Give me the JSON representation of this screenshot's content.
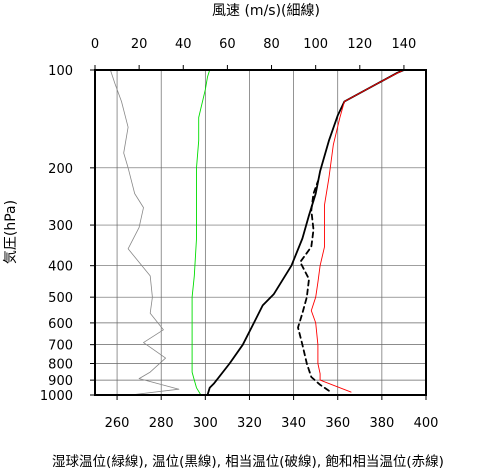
{
  "chart_data": {
    "type": "line",
    "title": "",
    "top_axis_title": "風速 (m/s)(細線)",
    "y_axis_title": "気圧(hPa)",
    "caption": "湿球温位(緑線), 温位(黒線), 相当温位(破線), 飽和相当温位(赤線)",
    "temp_axis": {
      "range": [
        250,
        400
      ],
      "ticks": [
        260,
        280,
        300,
        320,
        340,
        360,
        380,
        400
      ]
    },
    "wind_axis": {
      "range": [
        0,
        150
      ],
      "ticks": [
        0,
        20,
        40,
        60,
        80,
        100,
        120,
        140
      ]
    },
    "pressure_axis": {
      "range": [
        1000,
        100
      ],
      "scale": "log",
      "ticks": [
        1000,
        900,
        800,
        700,
        600,
        500,
        400,
        300,
        200,
        100
      ]
    },
    "grid": true,
    "series": [
      {
        "key": "wind",
        "label": "風速",
        "axis": "wind",
        "color": "#888888",
        "width": 0.8,
        "dash": "",
        "points": [
          [
            16,
            1000
          ],
          [
            38,
            960
          ],
          [
            20,
            890
          ],
          [
            25,
            850
          ],
          [
            32,
            770
          ],
          [
            22,
            690
          ],
          [
            31,
            630
          ],
          [
            25,
            560
          ],
          [
            26,
            500
          ],
          [
            25,
            430
          ],
          [
            15,
            355
          ],
          [
            20,
            305
          ],
          [
            22,
            265
          ],
          [
            18,
            240
          ],
          [
            15,
            200
          ],
          [
            13,
            180
          ],
          [
            15,
            150
          ],
          [
            12,
            125
          ],
          [
            9,
            110
          ],
          [
            7,
            100
          ]
        ]
      },
      {
        "key": "wet_bulb",
        "label": "湿球温位",
        "axis": "temp",
        "color": "#00dd00",
        "width": 0.9,
        "dash": "",
        "points": [
          [
            298,
            1000
          ],
          [
            296,
            950
          ],
          [
            295,
            900
          ],
          [
            294,
            850
          ],
          [
            294,
            780
          ],
          [
            294,
            700
          ],
          [
            294,
            600
          ],
          [
            294,
            500
          ],
          [
            295,
            430
          ],
          [
            296,
            330
          ],
          [
            296,
            260
          ],
          [
            296,
            200
          ],
          [
            297,
            165
          ],
          [
            297,
            140
          ],
          [
            300,
            115
          ],
          [
            301,
            105
          ],
          [
            302,
            100
          ]
        ]
      },
      {
        "key": "theta",
        "label": "温位",
        "axis": "temp",
        "color": "#000000",
        "width": 1.8,
        "dash": "",
        "points": [
          [
            301,
            1000
          ],
          [
            302,
            950
          ],
          [
            304,
            920
          ],
          [
            311,
            800
          ],
          [
            317,
            700
          ],
          [
            322,
            600
          ],
          [
            326,
            530
          ],
          [
            331,
            490
          ],
          [
            339,
            400
          ],
          [
            344,
            330
          ],
          [
            347,
            280
          ],
          [
            350,
            240
          ],
          [
            352,
            205
          ],
          [
            356,
            165
          ],
          [
            360,
            138
          ],
          [
            363,
            125
          ],
          [
            378,
            110
          ],
          [
            387,
            102
          ],
          [
            390,
            100
          ]
        ]
      },
      {
        "key": "theta_e",
        "label": "相当温位",
        "axis": "temp",
        "color": "#000000",
        "width": 1.8,
        "dash": "5,4",
        "points": [
          [
            356,
            970
          ],
          [
            352,
            930
          ],
          [
            348,
            880
          ],
          [
            346,
            800
          ],
          [
            344,
            700
          ],
          [
            342,
            620
          ],
          [
            344,
            560
          ],
          [
            346,
            500
          ],
          [
            347,
            440
          ],
          [
            343,
            390
          ],
          [
            348,
            350
          ],
          [
            349,
            310
          ],
          [
            348,
            270
          ],
          [
            349,
            240
          ],
          [
            351,
            220
          ]
        ]
      },
      {
        "key": "theta_es",
        "label": "飽和相当温位",
        "axis": "temp",
        "color": "#ff0000",
        "width": 0.9,
        "dash": "",
        "points": [
          [
            366,
            980
          ],
          [
            352,
            900
          ],
          [
            352,
            860
          ],
          [
            351,
            800
          ],
          [
            351,
            700
          ],
          [
            350,
            600
          ],
          [
            348,
            550
          ],
          [
            350,
            500
          ],
          [
            351,
            450
          ],
          [
            352,
            400
          ],
          [
            354,
            350
          ],
          [
            354,
            300
          ],
          [
            354,
            260
          ],
          [
            356,
            215
          ],
          [
            358,
            170
          ],
          [
            361,
            140
          ],
          [
            363,
            125
          ],
          [
            378,
            110
          ],
          [
            386,
            103
          ],
          [
            390,
            100
          ]
        ]
      }
    ]
  }
}
